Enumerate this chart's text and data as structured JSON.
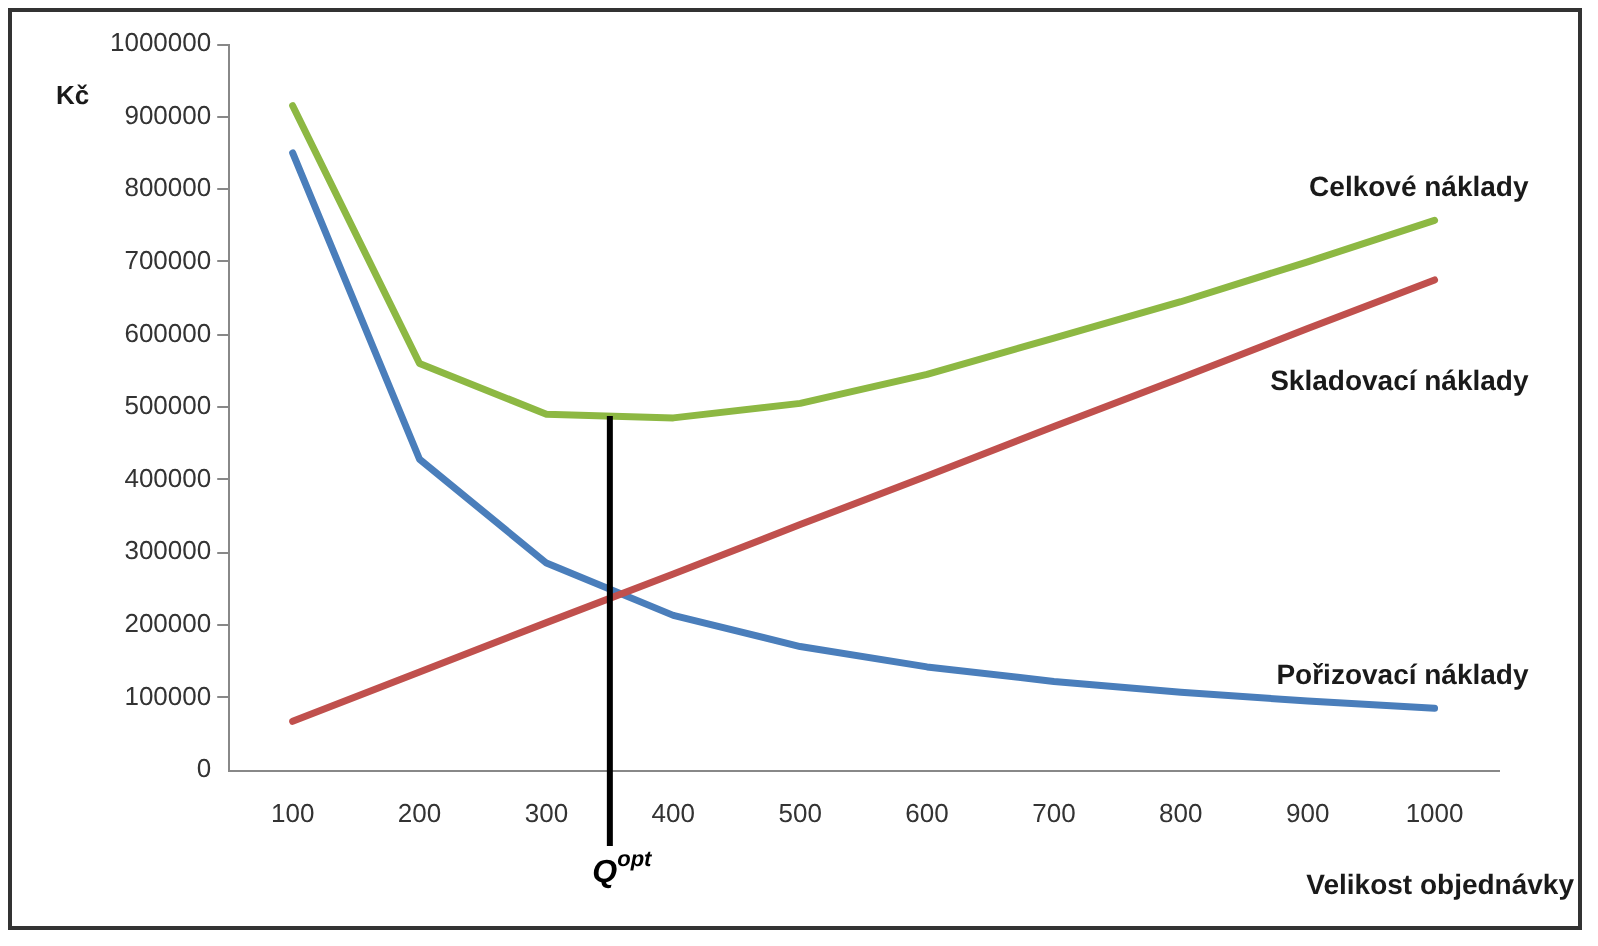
{
  "chart_data": {
    "type": "line",
    "ylabel": "Kč",
    "xlabel": "Velikost objednávky",
    "x": [
      100,
      200,
      300,
      400,
      500,
      600,
      700,
      800,
      900,
      1000
    ],
    "xlim": [
      50,
      1050
    ],
    "xticks": [
      100,
      200,
      300,
      400,
      500,
      600,
      700,
      800,
      900,
      1000
    ],
    "ylim": [
      0,
      1000000
    ],
    "yticks": [
      0,
      100000,
      200000,
      300000,
      400000,
      500000,
      600000,
      700000,
      800000,
      900000,
      1000000
    ],
    "series": [
      {
        "name": "Celkové náklady",
        "color": "#8db843",
        "values": [
          915000,
          560000,
          490000,
          485000,
          505000,
          545000,
          595000,
          645000,
          700000,
          757000
        ]
      },
      {
        "name": "Skladovací náklady",
        "color": "#c0504d",
        "values": [
          67000,
          135000,
          203000,
          270000,
          338000,
          405000,
          473000,
          540000,
          608000,
          675000
        ]
      },
      {
        "name": "Pořizovací náklady",
        "color": "#4a7ebb",
        "values": [
          850000,
          428000,
          285000,
          213000,
          170000,
          142000,
          122000,
          107000,
          95000,
          85000
        ]
      }
    ],
    "ref_lines": [
      {
        "axis": "x",
        "value": 350,
        "label": "Q$^{opt}$",
        "color": "#000000"
      }
    ],
    "grid": false,
    "legend": false,
    "marker": "none",
    "line_style": "solid"
  }
}
